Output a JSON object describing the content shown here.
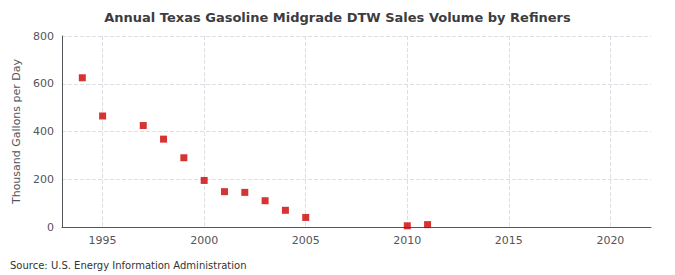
{
  "chart_data": {
    "type": "scatter",
    "title": "Annual Texas Gasoline Midgrade DTW Sales Volume by Refiners",
    "ylabel": "Thousand Gallons per Day",
    "annotations": [
      "Source: U.S. Energy Information Administration"
    ],
    "x": [
      1994,
      1995,
      1997,
      1998,
      1999,
      2000,
      2001,
      2002,
      2003,
      2004,
      2005,
      2010,
      2011
    ],
    "values": [
      625,
      465,
      425,
      368,
      290,
      195,
      148,
      145,
      110,
      70,
      40,
      5,
      10
    ],
    "color": "#cc0000",
    "marker": "square",
    "xlim": [
      1993.0,
      2022.0
    ],
    "xticks": [
      1995,
      2000,
      2005,
      2010,
      2015,
      2020
    ],
    "ylim": [
      0,
      800
    ],
    "yticks": [
      0,
      200,
      400,
      600,
      800
    ],
    "grid": true
  }
}
